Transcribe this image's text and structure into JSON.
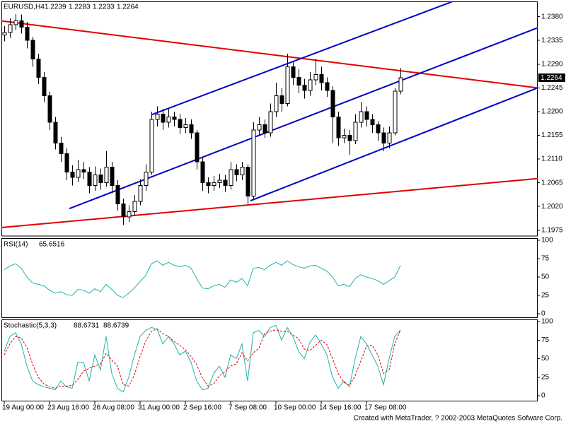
{
  "chart_data": [
    {
      "type": "candlestick",
      "title": "EURUSD,H4",
      "categories": [
        "19 Aug 00:00",
        null,
        null,
        null,
        null,
        null,
        null,
        null,
        "23 Aug 16:00",
        null,
        null,
        null,
        null,
        null,
        null,
        null,
        "26 Aug 08:00",
        null,
        null,
        null,
        null,
        null,
        null,
        null,
        "31 Aug 00:00",
        null,
        null,
        null,
        null,
        null,
        null,
        null,
        "2 Sep 16:00",
        null,
        null,
        null,
        null,
        null,
        null,
        null,
        "7 Sep 08:00",
        null,
        null,
        null,
        null,
        null,
        null,
        null,
        "10 Sep 00:00",
        null,
        null,
        null,
        null,
        null,
        null,
        null,
        "14 Sep 16:00",
        null,
        null,
        null,
        null,
        null,
        null,
        null,
        "17 Sep 08:00",
        null,
        null,
        null,
        null,
        null,
        null
      ],
      "open": [
        1.2345,
        1.235,
        1.2365,
        1.2372,
        1.236,
        1.2335,
        1.23,
        1.2265,
        1.223,
        1.218,
        1.214,
        1.212,
        1.2085,
        1.2075,
        1.209,
        1.2085,
        1.206,
        1.208,
        1.2065,
        1.2095,
        1.206,
        1.2025,
        1.2,
        1.201,
        1.203,
        1.206,
        1.2085,
        1.2185,
        1.2195,
        1.218,
        1.219,
        1.2185,
        1.217,
        1.2175,
        1.216,
        1.2105,
        1.2065,
        1.206,
        1.2065,
        1.207,
        1.206,
        1.209,
        1.208,
        1.2095,
        1.204,
        1.2165,
        1.2175,
        1.216,
        1.22,
        1.223,
        1.2215,
        1.2285,
        1.2265,
        1.225,
        1.224,
        1.226,
        1.227,
        1.2255,
        1.224,
        1.219,
        1.215,
        1.2155,
        1.2145,
        1.218,
        1.22,
        1.2185,
        1.2175,
        1.216,
        1.214,
        1.216,
        1.2239
      ],
      "high": [
        1.2362,
        1.2377,
        1.2385,
        1.2384,
        1.237,
        1.2342,
        1.231,
        1.2275,
        1.2238,
        1.219,
        1.2152,
        1.213,
        1.2098,
        1.2108,
        1.2105,
        1.2095,
        1.2096,
        1.2092,
        1.2125,
        1.2105,
        1.207,
        1.2035,
        1.2022,
        1.2042,
        1.2072,
        1.21,
        1.22,
        1.221,
        1.2205,
        1.2205,
        1.22,
        1.2195,
        1.2188,
        1.2185,
        1.2165,
        1.2112,
        1.2075,
        1.2078,
        1.2082,
        1.208,
        1.2105,
        1.21,
        1.2105,
        1.21,
        1.218,
        1.219,
        1.2185,
        1.2215,
        1.2255,
        1.2245,
        1.231,
        1.2295,
        1.228,
        1.2262,
        1.2275,
        1.23,
        1.2285,
        1.2265,
        1.2248,
        1.22,
        1.2168,
        1.2165,
        1.2195,
        1.2218,
        1.221,
        1.2195,
        1.2182,
        1.217,
        1.2172,
        1.2245,
        1.2283
      ],
      "low": [
        1.2333,
        1.234,
        1.2355,
        1.2348,
        1.232,
        1.2285,
        1.2252,
        1.2218,
        1.2165,
        1.2128,
        1.2105,
        1.207,
        1.206,
        1.2066,
        1.2072,
        1.2045,
        1.205,
        1.2052,
        1.2058,
        1.2045,
        1.2012,
        1.1985,
        1.199,
        1.2002,
        1.2022,
        1.205,
        1.208,
        1.2172,
        1.2165,
        1.217,
        1.2172,
        1.2158,
        1.216,
        1.2148,
        1.209,
        1.205,
        1.2045,
        1.205,
        1.2055,
        1.2048,
        1.2052,
        1.2068,
        1.207,
        1.2025,
        1.2035,
        1.2155,
        1.215,
        1.2152,
        1.219,
        1.22,
        1.221,
        1.225,
        1.2235,
        1.2225,
        1.223,
        1.225,
        1.224,
        1.2228,
        1.214,
        1.2135,
        1.214,
        1.2118,
        1.2138,
        1.217,
        1.2172,
        1.216,
        1.2145,
        1.2125,
        1.213,
        1.2155,
        1.2233
      ],
      "close": [
        1.235,
        1.2365,
        1.2372,
        1.236,
        1.2335,
        1.23,
        1.2265,
        1.223,
        1.218,
        1.214,
        1.212,
        1.2085,
        1.2075,
        1.209,
        1.2085,
        1.206,
        1.208,
        1.2065,
        1.2095,
        1.206,
        1.2025,
        1.2,
        1.201,
        1.203,
        1.206,
        1.2085,
        1.2185,
        1.2195,
        1.218,
        1.219,
        1.2185,
        1.217,
        1.2175,
        1.216,
        1.2105,
        1.2065,
        1.206,
        1.2065,
        1.207,
        1.206,
        1.209,
        1.208,
        1.2095,
        1.204,
        1.2165,
        1.2175,
        1.216,
        1.22,
        1.223,
        1.2215,
        1.2285,
        1.2265,
        1.225,
        1.224,
        1.226,
        1.227,
        1.2255,
        1.224,
        1.219,
        1.215,
        1.2155,
        1.2145,
        1.218,
        1.22,
        1.2185,
        1.2175,
        1.216,
        1.214,
        1.216,
        1.2239,
        1.2264
      ],
      "xlim": [
        -0.5,
        94.25
      ],
      "ylim": [
        1.1964,
        1.2409
      ],
      "yticks": [
        {
          "value": 1.238,
          "label": "1.2380"
        },
        1.2335,
        {
          "value": 1.229,
          "label": "1.2290"
        },
        1.2245,
        {
          "value": 1.22,
          "label": "1.2200"
        },
        1.2155,
        {
          "value": 1.211,
          "label": "1.2110"
        },
        1.2065,
        {
          "value": 1.202,
          "label": "1.2020"
        },
        1.1975
      ],
      "trendlines": [
        {
          "color": "#e00000",
          "x": [
            -0.5,
            94.25
          ],
          "y": [
            1.2372,
            1.2245
          ]
        },
        {
          "color": "#e00000",
          "x": [
            -0.5,
            94.25
          ],
          "y": [
            1.198,
            1.2073
          ]
        },
        {
          "color": "#0000c8",
          "x": [
            11.5,
            94.25
          ],
          "y": [
            1.2016,
            1.2359
          ]
        },
        {
          "color": "#0000c8",
          "x": [
            26,
            79.25
          ],
          "y": [
            1.2194,
            1.2409
          ]
        },
        {
          "color": "#0000c8",
          "x": [
            43.5,
            94.25
          ],
          "y": [
            1.2031,
            1.2245
          ]
        }
      ],
      "footer": "Created with MetaTrader, ? 2002-2003 MetaQuotes Sofware Corp."
    },
    {
      "type": "line",
      "title": "RSI(14)",
      "series": [
        {
          "color": "#20b2aa",
          "style": "solid",
          "values": [
            60,
            65,
            68,
            62,
            50,
            42,
            40,
            38,
            32,
            28,
            30,
            26,
            25,
            33,
            32,
            28,
            34,
            30,
            40,
            33,
            25,
            22,
            28,
            35,
            44,
            52,
            68,
            72,
            66,
            70,
            66,
            64,
            66,
            62,
            48,
            35,
            34,
            38,
            40,
            36,
            46,
            43,
            48,
            38,
            62,
            63,
            60,
            66,
            70,
            66,
            72,
            67,
            64,
            62,
            65,
            66,
            62,
            58,
            50,
            38,
            40,
            37,
            48,
            53,
            50,
            48,
            45,
            40,
            45,
            50,
            65.6516
          ]
        }
      ],
      "ylim": [
        -5.8,
        102.9
      ],
      "yticks": [
        100,
        75,
        50,
        25,
        0
      ]
    },
    {
      "type": "line",
      "title": "Stochastic(5,3,3)",
      "series": [
        {
          "color": "#20b2aa",
          "style": "solid",
          "values": [
            60,
            80,
            85,
            70,
            40,
            20,
            15,
            12,
            10,
            8,
            20,
            12,
            10,
            45,
            45,
            20,
            55,
            35,
            80,
            30,
            10,
            5,
            25,
            55,
            80,
            88,
            92,
            90,
            70,
            80,
            70,
            55,
            60,
            45,
            20,
            8,
            10,
            30,
            40,
            25,
            55,
            50,
            70,
            20,
            85,
            88,
            80,
            92,
            95,
            75,
            92,
            80,
            60,
            50,
            72,
            82,
            70,
            55,
            25,
            10,
            20,
            12,
            50,
            80,
            70,
            55,
            40,
            15,
            50,
            80,
            88.6731
          ]
        },
        {
          "color": "#e00000",
          "style": "dashed",
          "values": [
            55,
            70,
            80,
            78,
            65,
            43,
            25,
            16,
            12,
            10,
            13,
            13,
            14,
            22,
            33,
            37,
            40,
            43,
            57,
            48,
            40,
            15,
            13,
            28,
            53,
            74,
            87,
            90,
            84,
            80,
            73,
            68,
            62,
            53,
            42,
            24,
            13,
            16,
            27,
            32,
            40,
            43,
            58,
            47,
            58,
            64,
            84,
            87,
            89,
            87,
            87,
            82,
            77,
            63,
            61,
            68,
            75,
            69,
            50,
            30,
            18,
            14,
            27,
            47,
            67,
            68,
            55,
            30,
            35,
            70,
            88.6739
          ]
        }
      ],
      "ylim": [
        -7.6,
        102.9
      ],
      "yticks": [
        100,
        75,
        50,
        25,
        0
      ]
    }
  ]
}
